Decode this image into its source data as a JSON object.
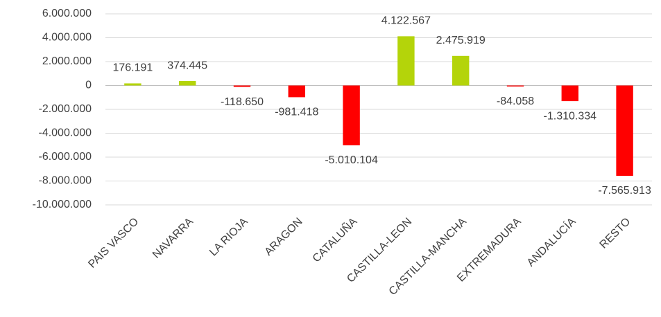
{
  "chart_data": {
    "type": "bar",
    "categories": [
      "PAIS VASCO",
      "NAVARRA",
      "LA RIOJA",
      "ARAGON",
      "CATALUÑA",
      "CASTILLA-LEON",
      "CASTILLA-MANCHA",
      "EXTREMADURA",
      "ANDALUCÍA",
      "RESTO"
    ],
    "values": [
      176191,
      374445,
      -118650,
      -981418,
      -5010104,
      4122567,
      2475919,
      -84058,
      -1310334,
      -7565913
    ],
    "value_labels": [
      "176.191",
      "374.445",
      "-118.650",
      "-981.418",
      "-5.010.104",
      "4.122.567",
      "2.475.919",
      "-84.058",
      "-1.310.334",
      "-7.565.913"
    ],
    "colors": [
      "#b4d40a",
      "#b4d40a",
      "#ff0000",
      "#ff0000",
      "#ff0000",
      "#b4d40a",
      "#b4d40a",
      "#ff0000",
      "#ff0000",
      "#ff0000"
    ],
    "ylim": [
      -10000000,
      6000000
    ],
    "yticks": [
      {
        "value": -10000000,
        "label": "-10.000.000"
      },
      {
        "value": -8000000,
        "label": "-8.000.000"
      },
      {
        "value": -6000000,
        "label": "-6.000.000"
      },
      {
        "value": -4000000,
        "label": "-4.000.000"
      },
      {
        "value": -2000000,
        "label": "-2.000.000"
      },
      0,
      {
        "value": 2000000,
        "label": "2.000.000"
      },
      {
        "value": 4000000,
        "label": "4.000.000"
      },
      {
        "value": 6000000,
        "label": "6.000.000"
      }
    ],
    "grid": true
  }
}
